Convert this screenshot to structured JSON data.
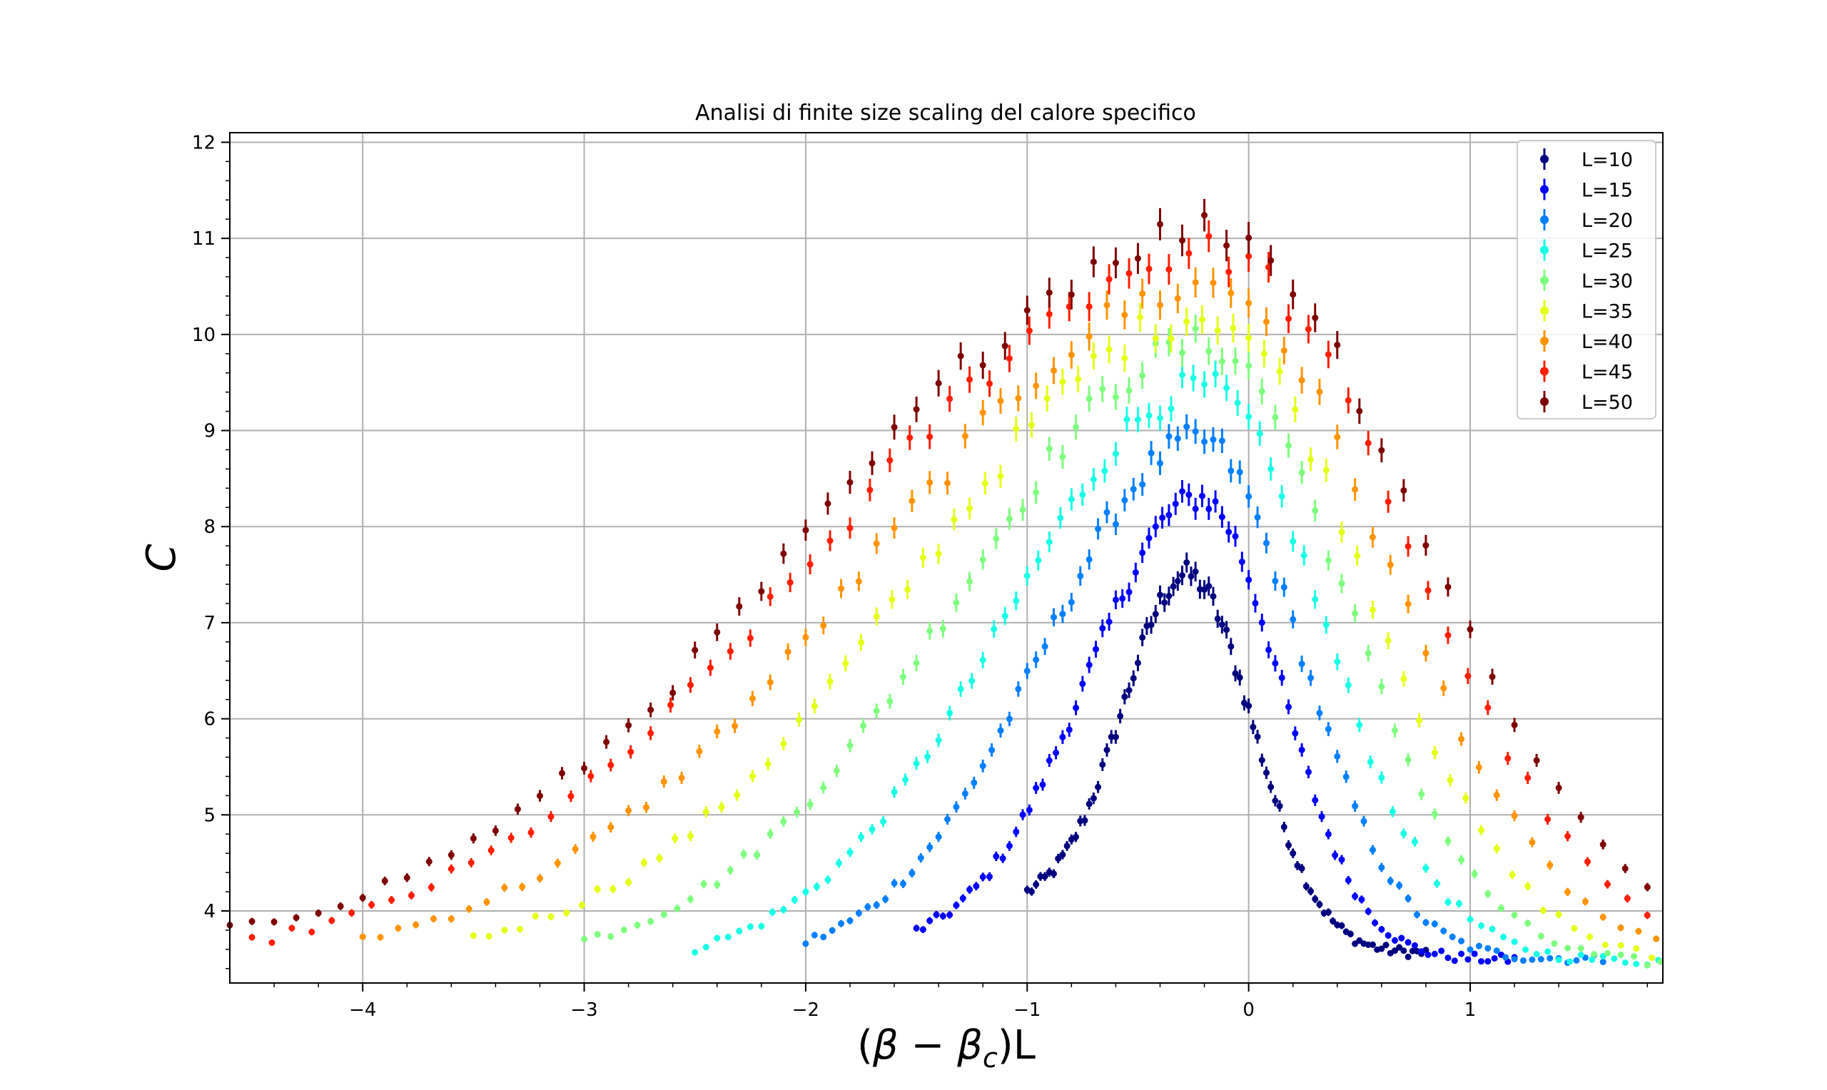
{
  "chart_data": {
    "type": "scatter",
    "title": "Analisi di finite size scaling del calore specifico",
    "xlabel_parts": [
      "(",
      "β",
      " − ",
      "β",
      "c",
      ")L"
    ],
    "ylabel": "C",
    "xlim": [
      -4.6,
      1.87
    ],
    "ylim": [
      3.25,
      12.1
    ],
    "xticks": [
      -4,
      -3,
      -2,
      -1,
      0,
      1
    ],
    "xtick_labels": [
      "−4",
      "−3",
      "−2",
      "−1",
      "0",
      "1"
    ],
    "yticks": [
      4,
      5,
      6,
      7,
      8,
      9,
      10,
      11,
      12
    ],
    "ytick_labels": [
      "4",
      "5",
      "6",
      "7",
      "8",
      "9",
      "10",
      "11",
      "12"
    ],
    "grid": true,
    "legend_position": "top-right",
    "x_range": [
      -1.0,
      0.8
    ],
    "errorbars": true,
    "series": [
      {
        "name": "L=10",
        "L": 10,
        "color": "#00007f",
        "peak_x": -0.28,
        "peak_y": 7.5,
        "left_x": -1.0,
        "left_y": 4.2,
        "right_x": 0.4,
        "right_y": 3.85
      },
      {
        "name": "L=15",
        "L": 15,
        "color": "#0000ff",
        "peak_x": -0.22,
        "peak_y": 8.3,
        "left_x": -1.5,
        "left_y": 3.8,
        "right_x": 0.6,
        "right_y": 3.85
      },
      {
        "name": "L=20",
        "L": 20,
        "color": "#007fff",
        "peak_x": -0.22,
        "peak_y": 8.9,
        "left_x": -2.0,
        "left_y": 3.68,
        "right_x": 0.8,
        "right_y": 3.9
      },
      {
        "name": "L=25",
        "L": 25,
        "color": "#19ffe6",
        "peak_x": -0.2,
        "peak_y": 9.45,
        "left_x": -2.45,
        "left_y": 3.65,
        "right_x": 1.0,
        "right_y": 3.92
      },
      {
        "name": "L=30",
        "L": 30,
        "color": "#7fff7f",
        "peak_x": -0.18,
        "peak_y": 9.9,
        "left_x": -3.0,
        "left_y": 3.7,
        "right_x": 1.2,
        "right_y": 3.92
      },
      {
        "name": "L=35",
        "L": 35,
        "color": "#e5ff19",
        "peak_x": -0.18,
        "peak_y": 10.2,
        "left_x": -3.5,
        "left_y": 3.72,
        "right_x": 1.4,
        "right_y": 3.93
      },
      {
        "name": "L=40",
        "L": 40,
        "color": "#ff9400",
        "peak_x": -0.16,
        "peak_y": 10.5,
        "left_x": -4.0,
        "left_y": 3.72,
        "right_x": 1.6,
        "right_y": 3.94
      },
      {
        "name": "L=45",
        "L": 45,
        "color": "#ff1e00",
        "peak_x": -0.15,
        "peak_y": 10.85,
        "left_x": -4.5,
        "left_y": 3.68,
        "right_x": 1.8,
        "right_y": 3.95
      },
      {
        "name": "L=50",
        "L": 50,
        "color": "#7f0000",
        "peak_x": -0.15,
        "peak_y": 11.1,
        "left_x": -4.6,
        "left_y": 3.8,
        "right_x": 1.9,
        "right_y": 4.12
      }
    ]
  }
}
